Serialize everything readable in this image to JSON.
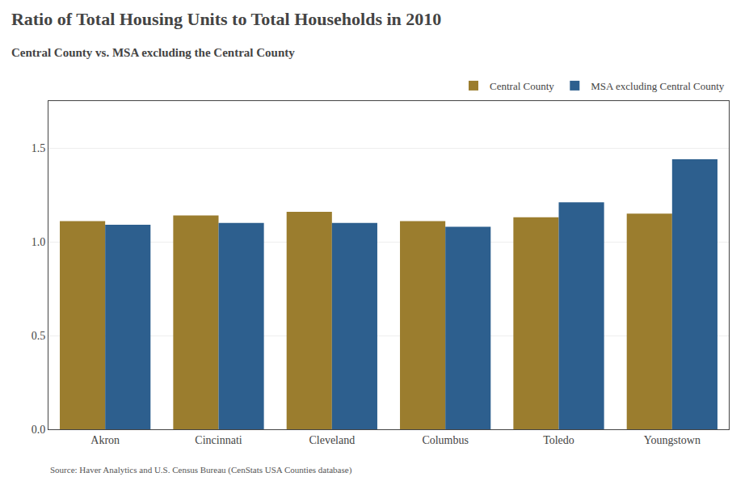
{
  "chart_data": {
    "type": "bar",
    "title": "Ratio of Total Housing Units to Total Households in 2010",
    "subtitle": "Central County vs. MSA excluding the Central County",
    "source": "Source: Haver Analytics and U.S. Census Bureau (CenStats USA Counties database)",
    "categories": [
      "Akron",
      "Cincinnati",
      "Cleveland",
      "Columbus",
      "Toledo",
      "Youngstown"
    ],
    "series": [
      {
        "name": "Central County",
        "color": "#9B7D2E",
        "values": [
          1.11,
          1.14,
          1.16,
          1.11,
          1.13,
          1.15
        ]
      },
      {
        "name": "MSA excluding Central County",
        "color": "#2D5F8E",
        "values": [
          1.09,
          1.1,
          1.1,
          1.08,
          1.21,
          1.44
        ]
      }
    ],
    "ylim": [
      0.0,
      1.75
    ],
    "yticks": [
      {
        "value": 0.0,
        "label": "0.0"
      },
      0.5,
      {
        "value": 1.0,
        "label": "1.0"
      },
      1.5
    ],
    "grid": true,
    "legend": "upper right"
  }
}
